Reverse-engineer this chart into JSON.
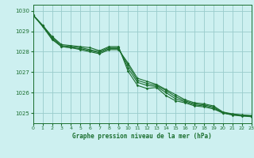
{
  "title": "Graphe pression niveau de la mer (hPa)",
  "bg_color": "#cdf0f0",
  "grid_color": "#99cccc",
  "line_color": "#1a6e2e",
  "xlim": [
    0,
    23
  ],
  "ylim": [
    1024.5,
    1030.3
  ],
  "yticks": [
    1025,
    1026,
    1027,
    1028,
    1029,
    1030
  ],
  "xticks": [
    0,
    1,
    2,
    3,
    4,
    5,
    6,
    7,
    8,
    9,
    10,
    11,
    12,
    13,
    14,
    15,
    16,
    17,
    18,
    19,
    20,
    21,
    22,
    23
  ],
  "series": [
    [
      1029.8,
      1029.3,
      1028.75,
      1028.35,
      1028.3,
      1028.25,
      1028.2,
      1028.05,
      1028.25,
      1028.25,
      1027.05,
      1026.35,
      1026.2,
      1026.25,
      1025.85,
      1025.6,
      1025.5,
      1025.35,
      1025.3,
      1025.2,
      1025.0,
      1024.9,
      1024.85,
      1024.82
    ],
    [
      1029.8,
      1029.3,
      1028.7,
      1028.3,
      1028.25,
      1028.2,
      1028.1,
      1028.0,
      1028.2,
      1028.2,
      1027.2,
      1026.5,
      1026.35,
      1026.3,
      1026.0,
      1025.7,
      1025.55,
      1025.4,
      1025.35,
      1025.25,
      1025.0,
      1024.92,
      1024.87,
      1024.84
    ],
    [
      1029.8,
      1029.25,
      1028.65,
      1028.25,
      1028.2,
      1028.15,
      1028.05,
      1027.95,
      1028.15,
      1028.15,
      1027.35,
      1026.6,
      1026.45,
      1026.35,
      1026.1,
      1025.8,
      1025.6,
      1025.45,
      1025.4,
      1025.3,
      1025.02,
      1024.94,
      1024.89,
      1024.86
    ],
    [
      1029.8,
      1029.25,
      1028.6,
      1028.25,
      1028.2,
      1028.1,
      1028.0,
      1027.9,
      1028.1,
      1028.1,
      1027.45,
      1026.7,
      1026.55,
      1026.4,
      1026.15,
      1025.9,
      1025.65,
      1025.5,
      1025.45,
      1025.35,
      1025.05,
      1024.96,
      1024.91,
      1024.88
    ]
  ]
}
